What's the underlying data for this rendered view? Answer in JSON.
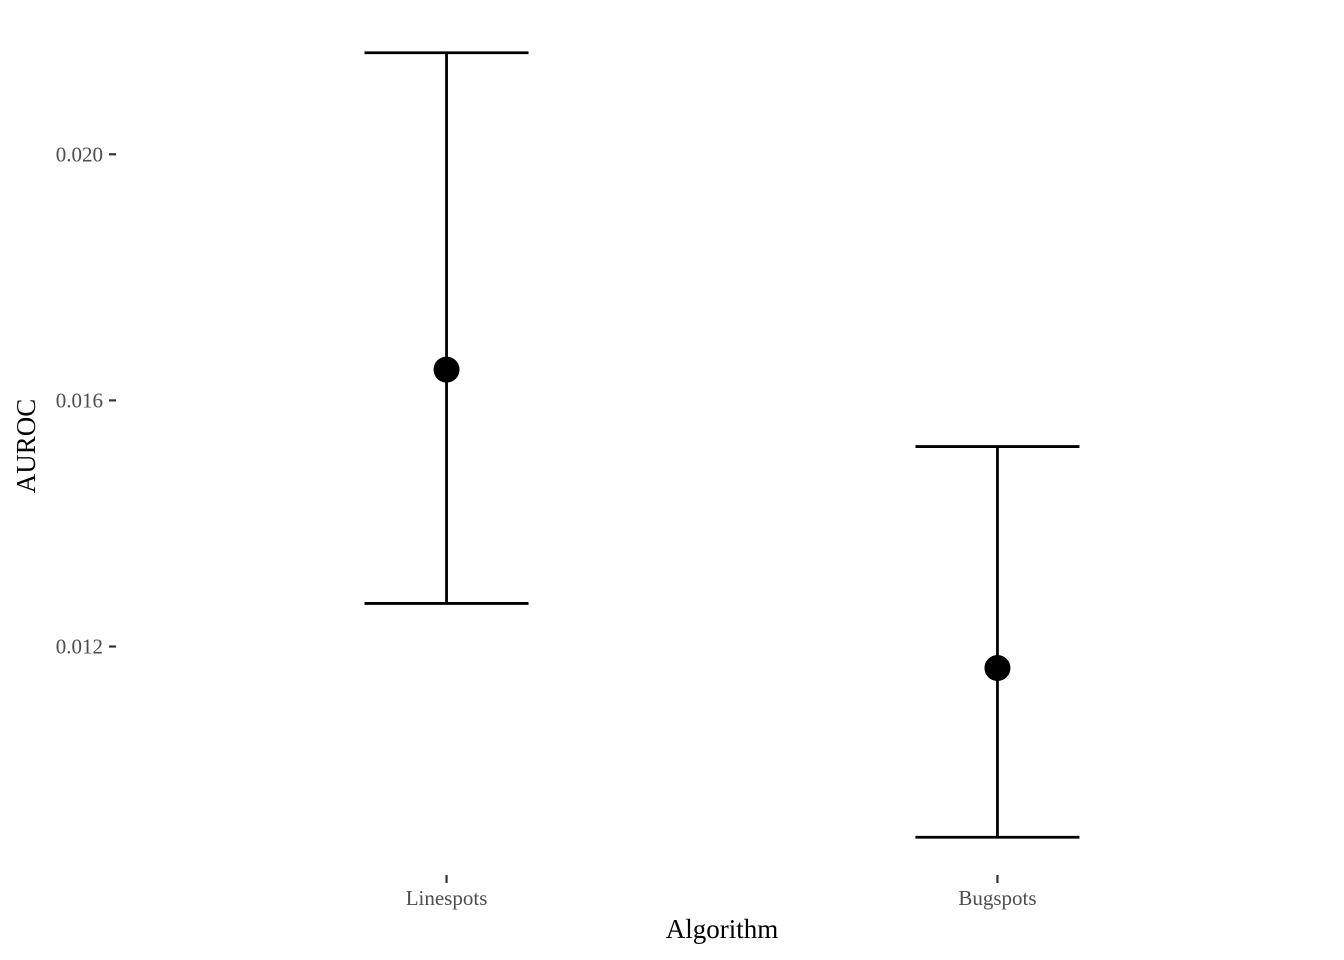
{
  "chart_data": {
    "type": "scatter",
    "title": "",
    "xlabel": "Algorithm",
    "ylabel": "AUROC",
    "categories": [
      "Linespots",
      "Bugspots"
    ],
    "points": [
      {
        "category": "Linespots",
        "y": 0.0165,
        "ymin": 0.0127,
        "ymax": 0.02165
      },
      {
        "category": "Bugspots",
        "y": 0.01165,
        "ymin": 0.0089,
        "ymax": 0.01525
      }
    ],
    "y_ticks": [
      0.012,
      0.016,
      0.02
    ],
    "y_tick_labels": [
      "0.012",
      "0.016",
      "0.020"
    ],
    "ylim": [
      0.0084,
      0.02215
    ],
    "grid": false,
    "legend": "none",
    "colors": {
      "point": "#000000",
      "errorbar": "#000000",
      "tick_text": "#4d4d4d",
      "axis_title": "#000000"
    }
  }
}
